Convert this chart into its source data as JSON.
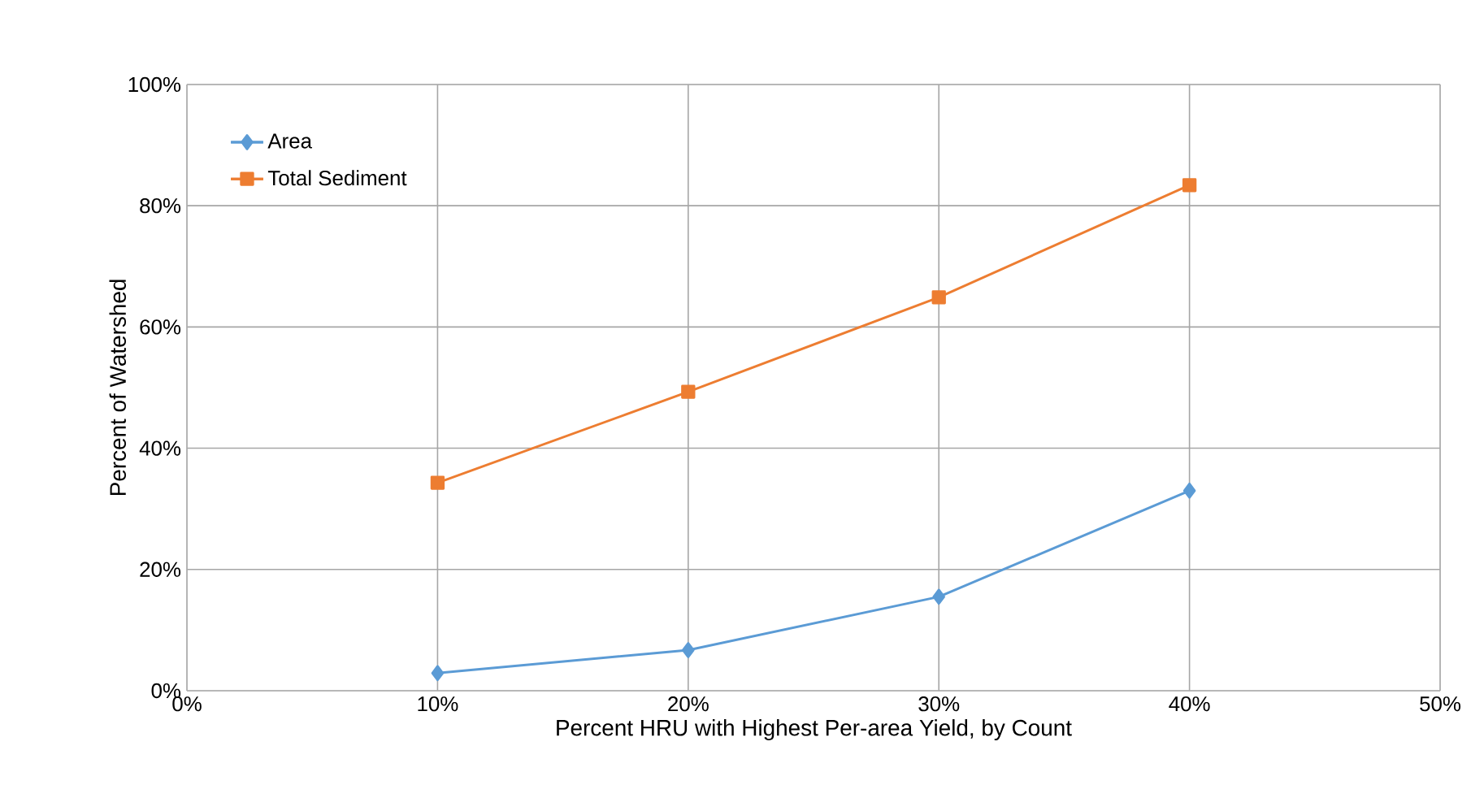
{
  "chart_data": {
    "type": "line",
    "xlabel": "Percent HRU with Highest Per-area Yield, by Count",
    "ylabel": "Percent of Watershed",
    "x": [
      10,
      20,
      30,
      40
    ],
    "series": [
      {
        "name": "Area",
        "color": "#5b9bd5",
        "marker": "diamond",
        "values": [
          2.9,
          6.7,
          15.5,
          33
        ]
      },
      {
        "name": "Total Sediment",
        "color": "#ed7d31",
        "marker": "square",
        "values": [
          34.3,
          49.3,
          64.9,
          83.4
        ]
      }
    ],
    "xlim": [
      0,
      50
    ],
    "ylim": [
      0,
      100
    ],
    "xticks": [
      {
        "value": 0,
        "label": "0%"
      },
      {
        "value": 10,
        "label": "10%"
      },
      {
        "value": 20,
        "label": "20%"
      },
      {
        "value": 30,
        "label": "30%"
      },
      {
        "value": 40,
        "label": "40%"
      },
      {
        "value": 50,
        "label": "50%"
      }
    ],
    "yticks": [
      {
        "value": 0,
        "label": "0%"
      },
      {
        "value": 20,
        "label": "20%"
      },
      {
        "value": 40,
        "label": "40%"
      },
      {
        "value": 60,
        "label": "60%"
      },
      {
        "value": 80,
        "label": "80%"
      },
      {
        "value": 100,
        "label": "100%"
      }
    ],
    "grid": true,
    "legend": "top left",
    "line_style": "solid"
  }
}
